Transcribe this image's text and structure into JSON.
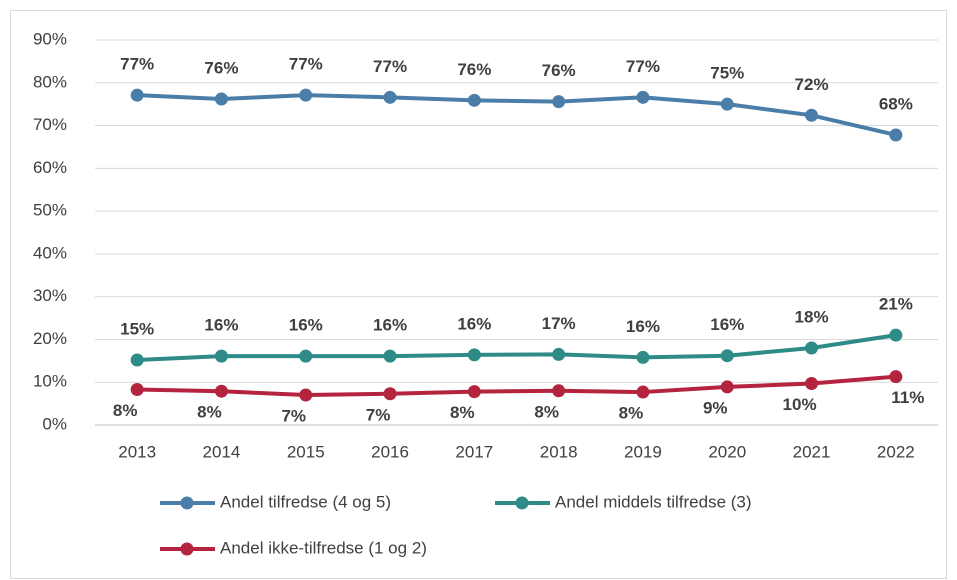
{
  "chart_data": {
    "type": "line",
    "categories": [
      "2013",
      "2014",
      "2015",
      "2016",
      "2017",
      "2018",
      "2019",
      "2020",
      "2021",
      "2022"
    ],
    "series": [
      {
        "name": "Andel tilfredse (4 og 5)",
        "color": "#4a7ea8",
        "values": [
          77.1,
          76.2,
          77.1,
          76.6,
          75.9,
          75.6,
          76.6,
          75.0,
          72.4,
          67.8
        ],
        "value_labels": [
          "77%",
          "76%",
          "77%",
          "77%",
          "76%",
          "76%",
          "77%",
          "75%",
          "72%",
          "68%"
        ]
      },
      {
        "name": "Andel middels tilfredse (3)",
        "color": "#2e8b87",
        "values": [
          15.2,
          16.1,
          16.1,
          16.1,
          16.4,
          16.5,
          15.8,
          16.2,
          18.0,
          21.0
        ],
        "value_labels": [
          "15%",
          "16%",
          "16%",
          "16%",
          "16%",
          "17%",
          "16%",
          "16%",
          "18%",
          "21%"
        ]
      },
      {
        "name": "Andel ikke-tilfredse (1 og 2)",
        "color": "#b5243f",
        "values": [
          8.3,
          7.9,
          7.0,
          7.3,
          7.8,
          8.0,
          7.7,
          8.9,
          9.7,
          11.3
        ],
        "value_labels": [
          "8%",
          "8%",
          "7%",
          "7%",
          "8%",
          "8%",
          "8%",
          "9%",
          "10%",
          "11%"
        ]
      }
    ],
    "ylim": [
      0,
      90
    ],
    "yticks": [
      {
        "value": 0,
        "label": "0%"
      },
      {
        "value": 10,
        "label": "10%"
      },
      {
        "value": 20,
        "label": "20%"
      },
      {
        "value": 30,
        "label": "30%"
      },
      {
        "value": 40,
        "label": "40%"
      },
      {
        "value": 50,
        "label": "50%"
      },
      {
        "value": 60,
        "label": "60%"
      },
      {
        "value": 70,
        "label": "70%"
      },
      {
        "value": 80,
        "label": "80%"
      },
      {
        "value": 90,
        "label": "90%"
      }
    ],
    "grid": true
  }
}
